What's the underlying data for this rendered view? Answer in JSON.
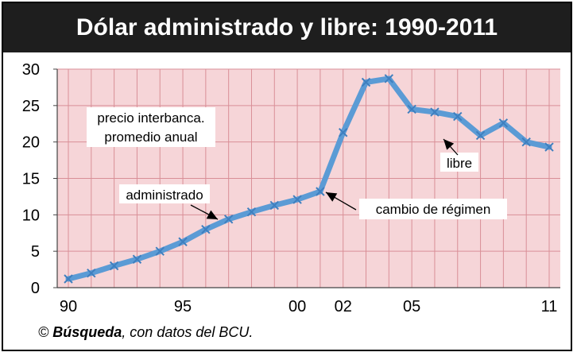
{
  "chart_data": {
    "type": "line",
    "title": "Dólar administrado y libre: 1990-2011",
    "x": [
      1990,
      1991,
      1992,
      1993,
      1994,
      1995,
      1996,
      1997,
      1998,
      1999,
      2000,
      2001,
      2002,
      2003,
      2004,
      2005,
      2006,
      2007,
      2008,
      2009,
      2010,
      2011
    ],
    "series": [
      {
        "values": [
          1.2,
          2.0,
          3.0,
          3.9,
          5.0,
          6.3,
          8.0,
          9.4,
          10.4,
          11.3,
          12.1,
          13.2,
          21.3,
          28.2,
          28.7,
          24.5,
          24.1,
          23.5,
          20.9,
          22.6,
          20.0,
          19.3
        ]
      }
    ],
    "xticks": [
      "90",
      "95",
      "00",
      "02",
      "05",
      "11"
    ],
    "xtick_years": [
      1990,
      1995,
      2000,
      2002,
      2005,
      2011
    ],
    "yticks": [
      "0",
      "5",
      "10",
      "15",
      "20",
      "25",
      "30"
    ],
    "ylim": [
      0,
      30
    ],
    "xlim": [
      1990,
      2011
    ],
    "grid": true,
    "annotations": {
      "legend_note_line1": "precio interbanca.",
      "legend_note_line2": "promedio anual",
      "administrado": "administrado",
      "cambio": "cambio de régimen",
      "libre": "libre"
    },
    "colors": {
      "line": "#5b9bd5",
      "plot_bg": "#f6d5d8",
      "grid": "#d98f97",
      "title_bg": "#1e1e1e"
    }
  },
  "source": {
    "symbol": "©",
    "name": "Búsqueda",
    "rest": ", con datos del BCU."
  }
}
